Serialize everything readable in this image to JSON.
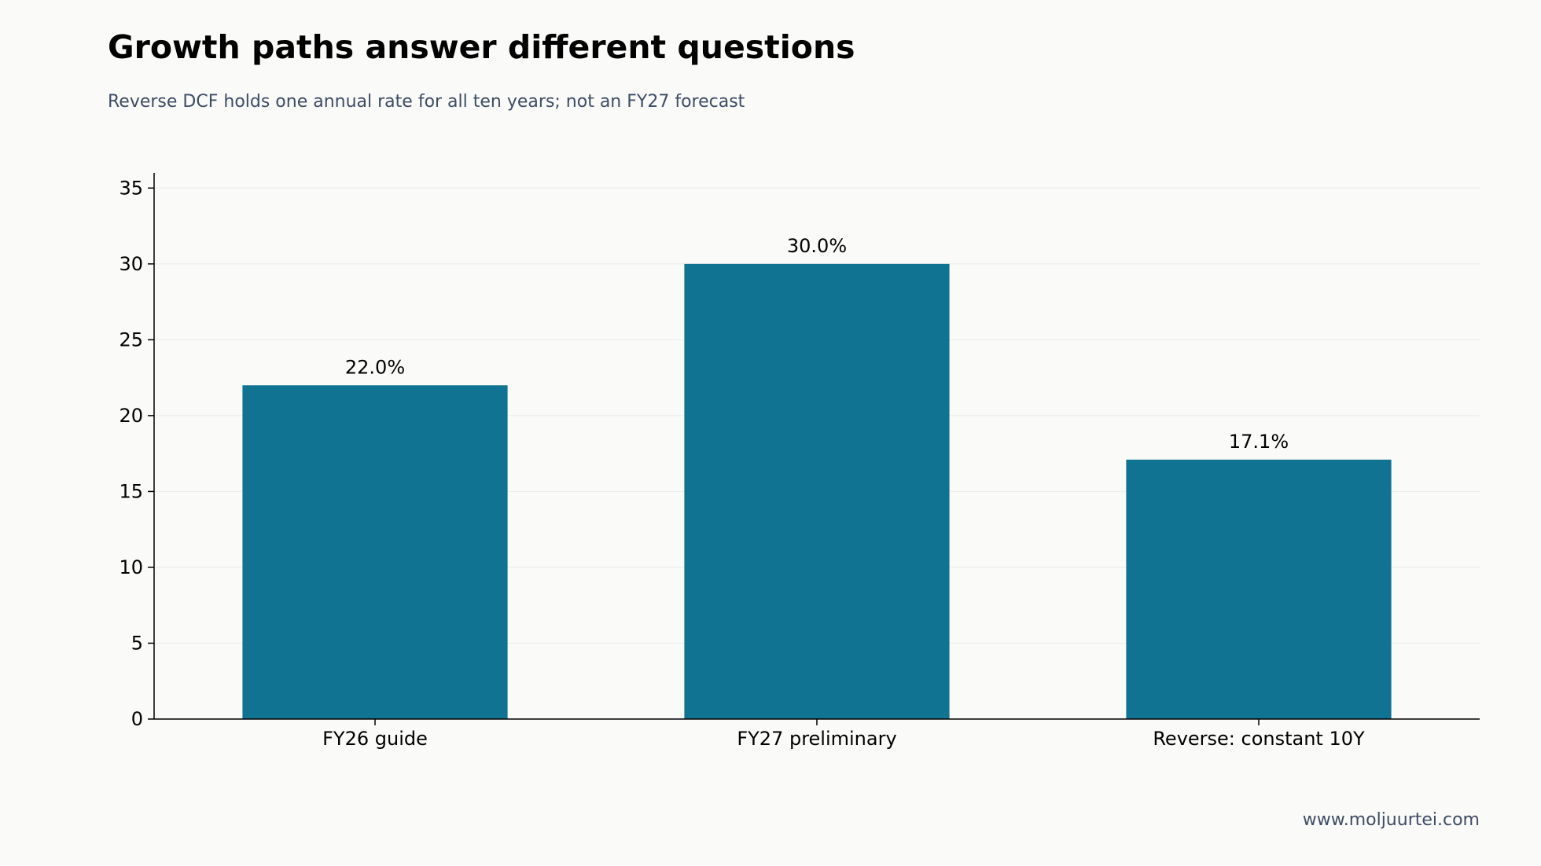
{
  "header": {
    "title": "Growth paths answer different questions",
    "subtitle": "Reverse DCF holds one annual rate for all ten years; not an FY27 forecast"
  },
  "footer": {
    "source": "www.moljuurtei.com"
  },
  "colors": {
    "bar": "#0f7391",
    "grid": "#ebebeb",
    "axis": "#000000"
  },
  "chart_data": {
    "type": "bar",
    "categories": [
      "FY26 guide",
      "FY27 preliminary",
      "Reverse: constant 10Y"
    ],
    "values": [
      22.0,
      30.0,
      17.1
    ],
    "data_labels": [
      "22.0%",
      "30.0%",
      "17.1%"
    ],
    "title": "Growth paths answer different questions",
    "subtitle": "Reverse DCF holds one annual rate for all ten years; not an FY27 forecast",
    "xlabel": "",
    "ylabel": "",
    "ylim": [
      0,
      36
    ],
    "yticks": [
      0,
      5,
      10,
      15,
      20,
      25,
      30,
      35
    ],
    "grid": true,
    "legend": "none"
  }
}
